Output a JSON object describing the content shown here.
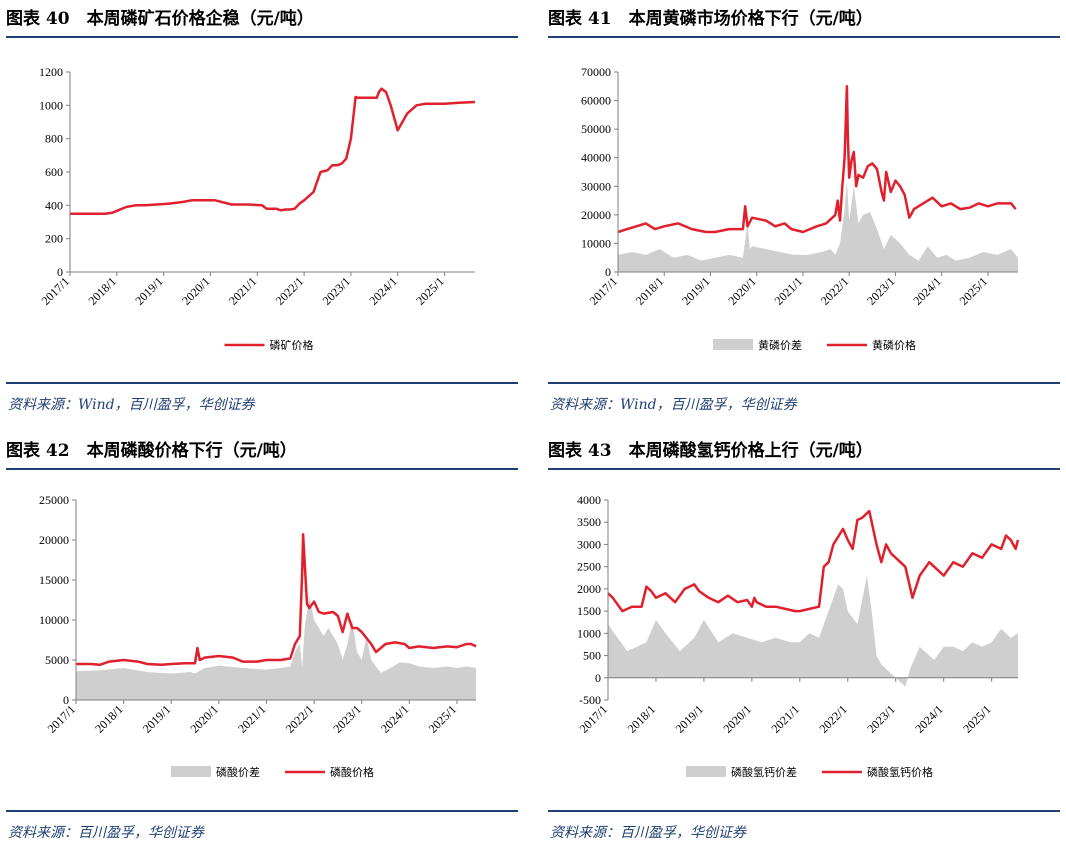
{
  "colors": {
    "line": "#e0202c",
    "area": "#cfcfcf",
    "axis": "#7f7f7f",
    "rule": "#1f3f73",
    "source": "#1f3f73"
  },
  "charts": [
    {
      "title": "图表 40　本周磷矿石价格企稳（元/吨）",
      "source": "资料来源：Wind，百川盈孚，华创证券",
      "chart_data": {
        "type": "line",
        "xlabels": [
          "2017/1",
          "2018/1",
          "2019/1",
          "2020/1",
          "2021/1",
          "2022/1",
          "2023/1",
          "2024/1",
          "2025/1"
        ],
        "xrange": [
          2017.0,
          2025.65
        ],
        "ylim": [
          0,
          1200
        ],
        "yticks": [
          0,
          200,
          400,
          600,
          800,
          1000,
          1200
        ],
        "series": [
          {
            "name": "磷矿价格",
            "kind": "line",
            "x": [
              2017.0,
              2017.4,
              2017.75,
              2017.9,
              2018.2,
              2018.4,
              2018.6,
              2019.1,
              2019.4,
              2019.6,
              2019.8,
              2020.1,
              2020.45,
              2020.7,
              2020.8,
              2021.1,
              2021.2,
              2021.4,
              2021.5,
              2021.6,
              2021.7,
              2021.8,
              2021.9,
              2022.0,
              2022.2,
              2022.35,
              2022.5,
              2022.6,
              2022.7,
              2022.8,
              2022.9,
              2023.0,
              2023.1,
              2023.15,
              2023.3,
              2023.45,
              2023.55,
              2023.6,
              2023.65,
              2023.75,
              2023.85,
              2024.0,
              2024.2,
              2024.4,
              2024.6,
              2025.0,
              2025.3,
              2025.65
            ],
            "y": [
              350,
              350,
              350,
              355,
              390,
              400,
              400,
              410,
              420,
              430,
              430,
              430,
              405,
              405,
              405,
              400,
              380,
              380,
              370,
              375,
              375,
              380,
              410,
              430,
              480,
              600,
              610,
              640,
              640,
              650,
              680,
              800,
              1050,
              1045,
              1045,
              1045,
              1045,
              1080,
              1100,
              1080,
              1000,
              850,
              950,
              1000,
              1010,
              1010,
              1015,
              1020
            ]
          }
        ],
        "legend": [
          "磷矿价格"
        ]
      }
    },
    {
      "title": "图表 41　本周黄磷市场价格下行（元/吨）",
      "source": "资料来源：Wind，百川盈孚，华创证券",
      "chart_data": {
        "type": "line",
        "xlabels": [
          "2017/1",
          "2018/1",
          "2019/1",
          "2020/1",
          "2021/1",
          "2022/1",
          "2023/1",
          "2024/1",
          "2025/1"
        ],
        "xrange": [
          2017.0,
          2025.65
        ],
        "ylim": [
          0,
          70000
        ],
        "yticks": [
          0,
          10000,
          20000,
          30000,
          40000,
          50000,
          60000,
          70000
        ],
        "series": [
          {
            "name": "黄磷价差",
            "kind": "area",
            "x": [
              2017.0,
              2017.3,
              2017.6,
              2017.9,
              2018.2,
              2018.5,
              2018.8,
              2019.1,
              2019.4,
              2019.7,
              2019.8,
              2019.85,
              2019.9,
              2020.2,
              2020.5,
              2020.8,
              2021.1,
              2021.4,
              2021.6,
              2021.7,
              2021.8,
              2021.9,
              2021.95,
              2022.0,
              2022.1,
              2022.2,
              2022.3,
              2022.45,
              2022.6,
              2022.75,
              2022.9,
              2023.1,
              2023.3,
              2023.5,
              2023.7,
              2023.9,
              2024.1,
              2024.3,
              2024.6,
              2024.9,
              2025.2,
              2025.5,
              2025.65
            ],
            "y": [
              6000,
              7000,
              6000,
              8000,
              5000,
              6000,
              4000,
              5000,
              6000,
              5000,
              17000,
              8000,
              9000,
              8000,
              7000,
              6000,
              6000,
              7000,
              8000,
              6000,
              10000,
              22000,
              32000,
              18000,
              30000,
              17000,
              20000,
              21000,
              15000,
              8000,
              13000,
              10000,
              6000,
              4000,
              9000,
              5000,
              6000,
              4000,
              5000,
              7000,
              6000,
              8000,
              5000
            ]
          },
          {
            "name": "黄磷价格",
            "kind": "line",
            "x": [
              2017.0,
              2017.2,
              2017.4,
              2017.6,
              2017.8,
              2018.0,
              2018.3,
              2018.6,
              2018.9,
              2019.1,
              2019.4,
              2019.7,
              2019.75,
              2019.8,
              2019.9,
              2020.2,
              2020.4,
              2020.6,
              2020.75,
              2021.0,
              2021.3,
              2021.5,
              2021.7,
              2021.75,
              2021.8,
              2021.85,
              2021.9,
              2021.95,
              2021.97,
              2022.0,
              2022.05,
              2022.1,
              2022.15,
              2022.2,
              2022.3,
              2022.4,
              2022.5,
              2022.6,
              2022.7,
              2022.75,
              2022.8,
              2022.9,
              2023.0,
              2023.1,
              2023.2,
              2023.3,
              2023.4,
              2023.6,
              2023.8,
              2024.0,
              2024.2,
              2024.4,
              2024.6,
              2024.8,
              2025.0,
              2025.2,
              2025.4,
              2025.5,
              2025.6
            ],
            "y": [
              14000,
              15000,
              16000,
              17000,
              15000,
              16000,
              17000,
              15000,
              14000,
              14000,
              15000,
              15000,
              23000,
              16000,
              19000,
              18000,
              16000,
              17000,
              15000,
              14000,
              16000,
              17000,
              20000,
              25000,
              18000,
              30000,
              40000,
              65000,
              48000,
              33000,
              39000,
              42000,
              30000,
              34000,
              33000,
              37000,
              38000,
              36000,
              28000,
              25000,
              35000,
              28000,
              32000,
              30000,
              27000,
              19000,
              22000,
              24000,
              26000,
              23000,
              24000,
              22000,
              22500,
              24000,
              23000,
              24000,
              24000,
              24000,
              22000
            ]
          }
        ],
        "legend": [
          "黄磷价差",
          "黄磷价格"
        ]
      }
    },
    {
      "title": "图表 42　本周磷酸价格下行（元/吨）",
      "source": "资料来源：百川盈孚，华创证券",
      "chart_data": {
        "type": "line",
        "xlabels": [
          "2017/1",
          "2018/1",
          "2019/1",
          "2020/1",
          "2021/1",
          "2022/1",
          "2023/1",
          "2024/1",
          "2025/1"
        ],
        "xrange": [
          2017.0,
          2025.4
        ],
        "ylim": [
          0,
          25000
        ],
        "yticks": [
          0,
          5000,
          10000,
          15000,
          20000,
          25000
        ],
        "series": [
          {
            "name": "磷酸价差",
            "kind": "area",
            "x": [
              2017.0,
              2017.5,
              2018.0,
              2018.5,
              2019.0,
              2019.4,
              2019.5,
              2019.7,
              2020.0,
              2020.5,
              2021.0,
              2021.3,
              2021.5,
              2021.6,
              2021.7,
              2021.75,
              2021.8,
              2021.9,
              2022.0,
              2022.1,
              2022.2,
              2022.3,
              2022.5,
              2022.6,
              2022.7,
              2022.8,
              2022.9,
              2023.0,
              2023.1,
              2023.2,
              2023.4,
              2023.6,
              2023.8,
              2024.0,
              2024.2,
              2024.5,
              2024.8,
              2025.0,
              2025.2,
              2025.4
            ],
            "y": [
              3600,
              3700,
              4000,
              3500,
              3300,
              3500,
              3300,
              4000,
              4300,
              4000,
              3800,
              4000,
              4200,
              6000,
              7000,
              4000,
              9000,
              13000,
              10000,
              9000,
              8000,
              9000,
              7000,
              5000,
              7000,
              10000,
              6000,
              5000,
              8000,
              5000,
              3400,
              4000,
              4700,
              4600,
              4200,
              4000,
              4200,
              4000,
              4200,
              4000
            ]
          },
          {
            "name": "磷酸价格",
            "kind": "line",
            "x": [
              2017.0,
              2017.3,
              2017.5,
              2017.7,
              2018.0,
              2018.3,
              2018.5,
              2018.8,
              2019.0,
              2019.3,
              2019.5,
              2019.55,
              2019.6,
              2019.7,
              2020.0,
              2020.3,
              2020.5,
              2020.8,
              2021.0,
              2021.3,
              2021.5,
              2021.6,
              2021.7,
              2021.75,
              2021.77,
              2021.85,
              2021.9,
              2022.0,
              2022.1,
              2022.2,
              2022.4,
              2022.5,
              2022.6,
              2022.7,
              2022.8,
              2022.9,
              2023.0,
              2023.2,
              2023.3,
              2023.5,
              2023.7,
              2023.9,
              2024.0,
              2024.2,
              2024.5,
              2024.8,
              2025.0,
              2025.2,
              2025.3,
              2025.4
            ],
            "y": [
              4500,
              4500,
              4400,
              4800,
              5000,
              4800,
              4500,
              4400,
              4500,
              4600,
              4600,
              6500,
              5000,
              5300,
              5500,
              5300,
              4800,
              4800,
              5000,
              5000,
              5200,
              7000,
              8000,
              16000,
              20700,
              12000,
              11500,
              12300,
              11000,
              10800,
              11000,
              10500,
              8500,
              10800,
              9000,
              9000,
              8500,
              7000,
              6000,
              7000,
              7200,
              7000,
              6500,
              6700,
              6500,
              6700,
              6600,
              7000,
              7000,
              6700
            ]
          }
        ],
        "legend": [
          "磷酸价差",
          "磷酸价格"
        ]
      }
    },
    {
      "title": "图表 43　本周磷酸氢钙价格上行（元/吨）",
      "source": "资料来源：百川盈孚，华创证券",
      "chart_data": {
        "type": "line",
        "xlabels": [
          "2017/1",
          "2018/1",
          "2019/1",
          "2020/1",
          "2021/1",
          "2022/1",
          "2023/1",
          "2024/1",
          "2025/1"
        ],
        "xrange": [
          2017.0,
          2025.55
        ],
        "ylim": [
          -500,
          4000
        ],
        "yticks": [
          -500,
          0,
          500,
          1000,
          1500,
          2000,
          2500,
          3000,
          3500,
          4000
        ],
        "series": [
          {
            "name": "磷酸氢钙价差",
            "kind": "area",
            "x": [
              2017.0,
              2017.2,
              2017.4,
              2017.6,
              2017.8,
              2018.0,
              2018.2,
              2018.5,
              2018.8,
              2019.0,
              2019.3,
              2019.6,
              2019.9,
              2020.2,
              2020.5,
              2020.8,
              2021.0,
              2021.2,
              2021.4,
              2021.6,
              2021.8,
              2021.9,
              2022.0,
              2022.2,
              2022.4,
              2022.5,
              2022.6,
              2022.7,
              2022.8,
              2022.9,
              2023.0,
              2023.2,
              2023.3,
              2023.5,
              2023.6,
              2023.8,
              2024.0,
              2024.2,
              2024.4,
              2024.6,
              2024.8,
              2025.0,
              2025.2,
              2025.4,
              2025.55
            ],
            "y": [
              1200,
              900,
              600,
              700,
              800,
              1300,
              1000,
              600,
              900,
              1300,
              800,
              1000,
              900,
              800,
              900,
              800,
              800,
              1000,
              900,
              1500,
              2100,
              2000,
              1500,
              1200,
              2300,
              1500,
              500,
              300,
              200,
              100,
              0,
              -200,
              200,
              700,
              600,
              400,
              700,
              700,
              600,
              800,
              700,
              800,
              1100,
              900,
              1000
            ]
          },
          {
            "name": "磷酸氢钙价格",
            "kind": "line",
            "x": [
              2017.0,
              2017.1,
              2017.3,
              2017.5,
              2017.7,
              2017.8,
              2017.9,
              2018.0,
              2018.2,
              2018.4,
              2018.6,
              2018.8,
              2018.9,
              2019.1,
              2019.3,
              2019.5,
              2019.7,
              2019.9,
              2020.0,
              2020.05,
              2020.1,
              2020.3,
              2020.5,
              2020.7,
              2020.9,
              2021.0,
              2021.2,
              2021.4,
              2021.5,
              2021.6,
              2021.7,
              2021.9,
              2022.0,
              2022.1,
              2022.2,
              2022.3,
              2022.4,
              2022.45,
              2022.5,
              2022.6,
              2022.7,
              2022.8,
              2022.9,
              2023.0,
              2023.2,
              2023.35,
              2023.5,
              2023.7,
              2023.9,
              2024.0,
              2024.2,
              2024.4,
              2024.6,
              2024.8,
              2025.0,
              2025.2,
              2025.3,
              2025.4,
              2025.5,
              2025.55
            ],
            "y": [
              1900,
              1800,
              1500,
              1600,
              1600,
              2050,
              1950,
              1800,
              1900,
              1700,
              2000,
              2100,
              1950,
              1800,
              1700,
              1850,
              1700,
              1750,
              1600,
              1800,
              1700,
              1600,
              1600,
              1550,
              1500,
              1500,
              1550,
              1600,
              2500,
              2600,
              3000,
              3350,
              3100,
              2900,
              3550,
              3600,
              3700,
              3750,
              3500,
              3000,
              2600,
              3000,
              2800,
              2700,
              2500,
              1800,
              2300,
              2600,
              2400,
              2300,
              2600,
              2500,
              2800,
              2700,
              3000,
              2900,
              3200,
              3100,
              2900,
              3100
            ]
          }
        ],
        "legend": [
          "磷酸氢钙价差",
          "磷酸氢钙价格"
        ]
      }
    }
  ]
}
